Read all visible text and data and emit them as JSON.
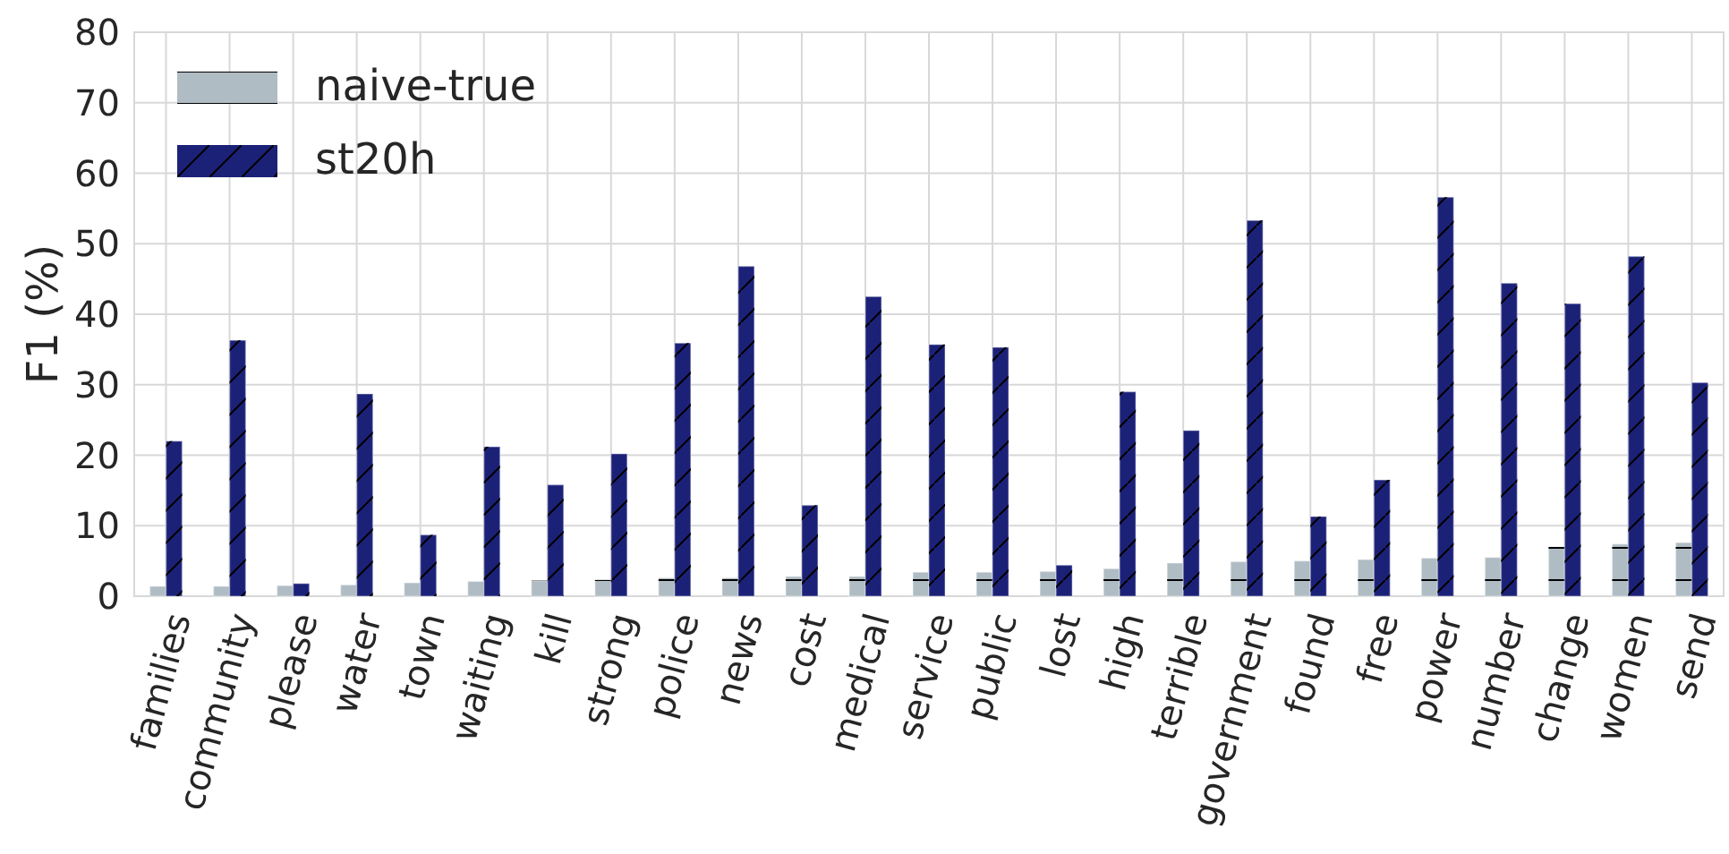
{
  "chart_data": {
    "type": "bar",
    "ylabel": "F1 (%)",
    "categories": [
      "families",
      "community",
      "please",
      "water",
      "town",
      "waiting",
      "kill",
      "strong",
      "police",
      "news",
      "cost",
      "medical",
      "service",
      "public",
      "lost",
      "high",
      "terrible",
      "government",
      "found",
      "free",
      "power",
      "number",
      "change",
      "women",
      "send"
    ],
    "series": [
      {
        "name": "naive-true",
        "color": "#b0bcc4",
        "values": [
          1.4,
          1.4,
          1.5,
          1.6,
          1.9,
          2.1,
          2.2,
          2.3,
          2.6,
          2.6,
          2.8,
          2.8,
          3.4,
          3.4,
          3.5,
          3.9,
          4.7,
          4.9,
          5.0,
          5.2,
          5.4,
          5.5,
          7.0,
          7.4,
          7.6
        ]
      },
      {
        "name": "st20h",
        "color": "#1c2178",
        "values": [
          22.0,
          36.3,
          1.8,
          28.7,
          8.7,
          21.2,
          15.8,
          20.2,
          35.9,
          46.8,
          12.9,
          42.5,
          35.7,
          35.3,
          4.4,
          29.0,
          23.5,
          53.3,
          11.3,
          16.5,
          56.6,
          44.4,
          41.5,
          48.2,
          30.3
        ]
      }
    ],
    "ylim": [
      0,
      80
    ],
    "yticks": [
      0,
      10,
      20,
      30,
      40,
      50,
      60,
      70,
      80
    ],
    "grid": true,
    "legend": "top left"
  }
}
